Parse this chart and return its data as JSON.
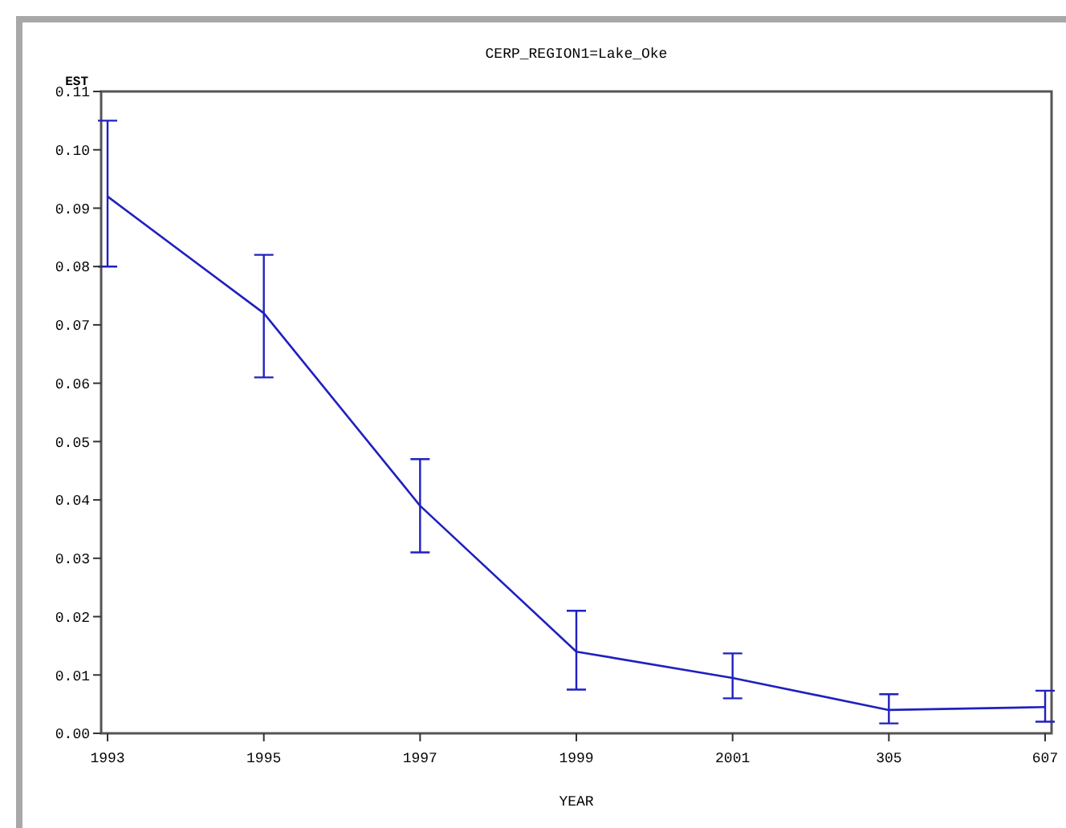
{
  "chart_data": {
    "type": "line",
    "title": "CERP_REGION1=Lake_Oke",
    "xlabel": "YEAR",
    "ylabel": "EST",
    "categories": [
      "1993",
      "1995",
      "1997",
      "1999",
      "2001",
      "305",
      "607"
    ],
    "series": [
      {
        "color": "#2020c0",
        "values": [
          0.092,
          0.072,
          0.039,
          0.014,
          0.0095,
          0.004,
          0.0045
        ],
        "errors": [
          [
            0.08,
            0.105
          ],
          [
            0.061,
            0.082
          ],
          [
            0.031,
            0.047
          ],
          [
            0.0075,
            0.021
          ],
          [
            0.006,
            0.0137
          ],
          [
            0.0017,
            0.0067
          ],
          [
            0.002,
            0.0073
          ]
        ]
      }
    ],
    "ylim": [
      0,
      0.11
    ],
    "yticks": [
      {
        "value": 0,
        "label": "0.00"
      },
      {
        "value": 0.01,
        "label": "0.01"
      },
      {
        "value": 0.02,
        "label": "0.02"
      },
      {
        "value": 0.03,
        "label": "0.03"
      },
      {
        "value": 0.04,
        "label": "0.04"
      },
      {
        "value": 0.05,
        "label": "0.05"
      },
      {
        "value": 0.06,
        "label": "0.06"
      },
      {
        "value": 0.07,
        "label": "0.07"
      },
      {
        "value": 0.08,
        "label": "0.08"
      },
      {
        "value": 0.09,
        "label": "0.09"
      },
      {
        "value": 0.1,
        "label": "0.10"
      },
      {
        "value": 0.11,
        "label": "0.11"
      }
    ],
    "grid": false,
    "marker": "none",
    "line_style": "solid"
  }
}
